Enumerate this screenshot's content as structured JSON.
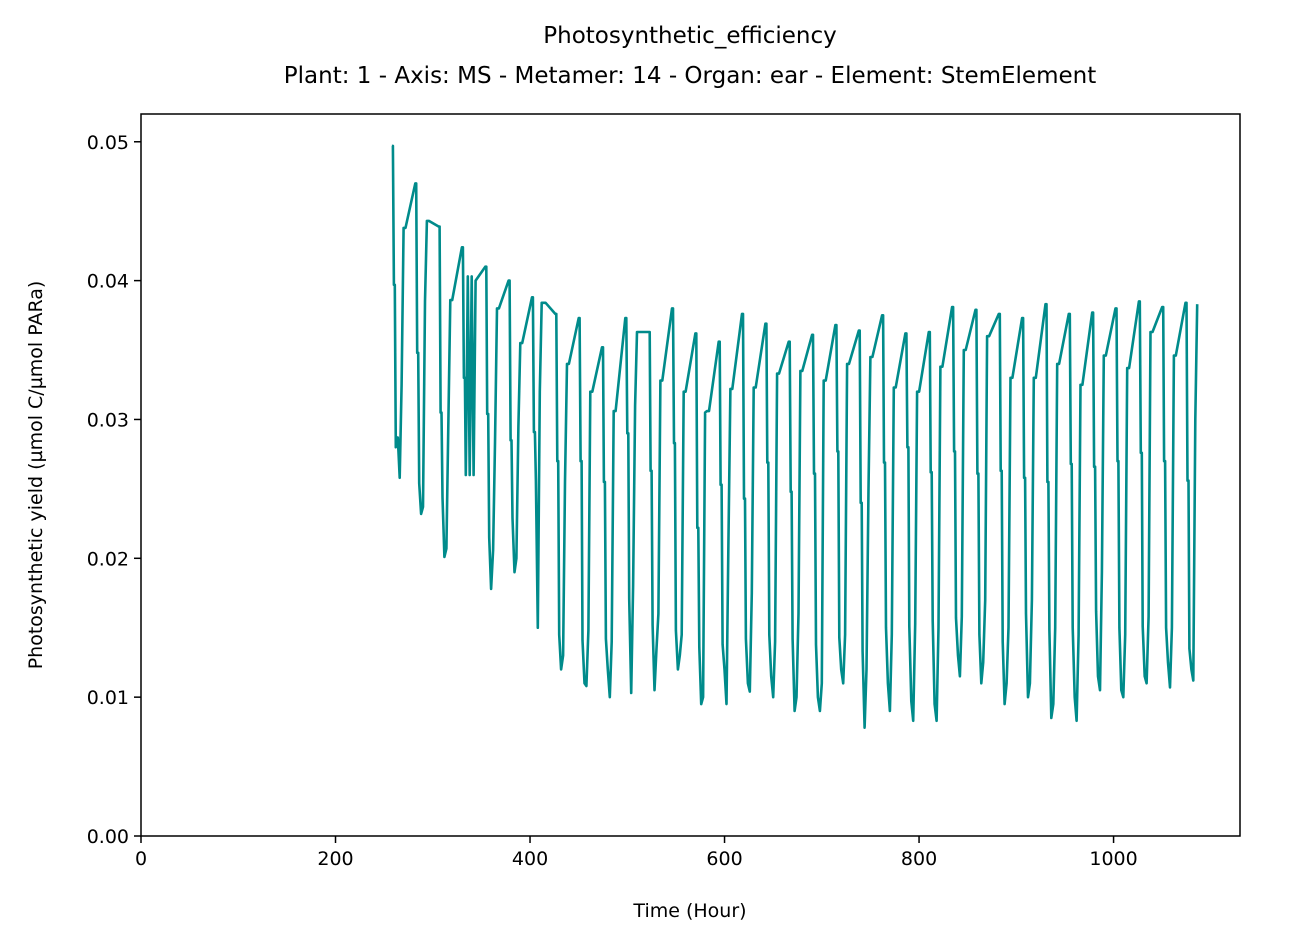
{
  "chart_data": {
    "type": "line",
    "title": "Photosynthetic_efficiency",
    "subtitle": "Plant: 1 - Axis: MS - Metamer: 14 - Organ: ear - Element: StemElement",
    "xlabel": "Time (Hour)",
    "ylabel": "Photosynthetic yield (µmol C/µmol PARa)",
    "xlim": [
      0,
      1130
    ],
    "ylim": [
      0,
      0.052
    ],
    "xticks": [
      0,
      200,
      400,
      600,
      800,
      1000
    ],
    "xtick_labels": [
      "0",
      "200",
      "400",
      "600",
      "800",
      "1000"
    ],
    "yticks": [
      0,
      0.01,
      0.02,
      0.03,
      0.04,
      0.05
    ],
    "ytick_labels": [
      "0.00",
      "0.01",
      "0.02",
      "0.03",
      "0.04",
      "0.05"
    ],
    "grid": false,
    "series": [
      {
        "color": "#008b8b",
        "x": [
          258,
          259,
          260,
          261,
          262,
          264,
          266,
          268,
          270,
          272,
          282,
          283,
          284,
          285,
          286,
          288,
          290,
          292,
          294,
          296,
          306,
          307,
          308,
          309,
          310,
          312,
          314,
          316,
          318,
          320,
          330,
          331,
          332,
          333,
          334,
          336,
          338,
          340,
          342,
          344,
          354,
          355,
          356,
          357,
          358,
          360,
          362,
          364,
          366,
          368,
          378,
          379,
          380,
          381,
          382,
          384,
          386,
          388,
          390,
          392,
          402,
          403,
          404,
          405,
          406,
          408,
          410,
          412,
          414,
          416,
          426,
          427,
          428,
          429,
          430,
          432,
          434,
          436,
          438,
          440,
          450,
          451,
          452,
          453,
          454,
          456,
          458,
          460,
          462,
          464,
          474,
          475,
          476,
          477,
          478,
          480,
          482,
          484,
          486,
          488,
          498,
          499,
          500,
          501,
          502,
          504,
          506,
          508,
          510,
          512,
          522,
          523,
          524,
          525,
          526,
          528,
          530,
          532,
          534,
          536,
          546,
          547,
          548,
          549,
          550,
          552,
          554,
          556,
          558,
          560,
          570,
          571,
          572,
          573,
          574,
          576,
          578,
          580,
          582,
          584,
          594,
          595,
          596,
          597,
          598,
          600,
          602,
          604,
          606,
          608,
          618,
          619,
          620,
          621,
          622,
          624,
          626,
          628,
          630,
          632,
          642,
          643,
          644,
          645,
          646,
          648,
          650,
          652,
          654,
          656,
          666,
          667,
          668,
          669,
          670,
          672,
          674,
          676,
          678,
          680,
          690,
          691,
          692,
          693,
          694,
          696,
          698,
          700,
          702,
          704,
          714,
          715,
          716,
          717,
          718,
          720,
          722,
          724,
          726,
          728,
          738,
          739,
          740,
          741,
          742,
          744,
          746,
          748,
          750,
          752,
          762,
          763,
          764,
          765,
          766,
          768,
          770,
          772,
          774,
          776,
          786,
          787,
          788,
          789,
          790,
          792,
          794,
          796,
          798,
          800,
          810,
          811,
          812,
          813,
          814,
          816,
          818,
          820,
          822,
          824,
          834,
          835,
          836,
          837,
          838,
          840,
          842,
          844,
          846,
          848,
          858,
          859,
          860,
          861,
          862,
          864,
          866,
          868,
          870,
          872,
          882,
          883,
          884,
          885,
          886,
          888,
          890,
          892,
          894,
          896,
          906,
          907,
          908,
          909,
          910,
          912,
          914,
          916,
          918,
          920,
          930,
          931,
          932,
          933,
          934,
          936,
          938,
          940,
          942,
          944,
          954,
          955,
          956,
          957,
          958,
          960,
          962,
          964,
          966,
          968,
          978,
          979,
          980,
          981,
          982,
          984,
          986,
          988,
          990,
          992,
          1002,
          1003,
          1004,
          1005,
          1006,
          1008,
          1010,
          1012,
          1014,
          1016,
          1026,
          1027,
          1028,
          1029,
          1030,
          1032,
          1034,
          1036,
          1038,
          1040,
          1050,
          1051,
          1052,
          1053,
          1054,
          1056,
          1058,
          1060,
          1062,
          1064,
          1074,
          1075,
          1076,
          1077,
          1078,
          1080,
          1082,
          1084,
          1086
        ],
        "y": [
          0.0497,
          0.0497,
          0.0397,
          0.0397,
          0.028,
          0.0287,
          0.0258,
          0.0325,
          0.0438,
          0.0438,
          0.047,
          0.047,
          0.0348,
          0.0348,
          0.0254,
          0.0232,
          0.0237,
          0.0385,
          0.0443,
          0.0443,
          0.0439,
          0.0439,
          0.0305,
          0.0305,
          0.0244,
          0.0201,
          0.0207,
          0.0295,
          0.0386,
          0.0386,
          0.0424,
          0.0424,
          0.033,
          0.033,
          0.026,
          0.0403,
          0.026,
          0.0403,
          0.026,
          0.04,
          0.041,
          0.041,
          0.0304,
          0.0304,
          0.0215,
          0.0178,
          0.0206,
          0.0283,
          0.038,
          0.038,
          0.04,
          0.04,
          0.0285,
          0.0285,
          0.0229,
          0.019,
          0.02,
          0.0295,
          0.0355,
          0.0355,
          0.0388,
          0.0388,
          0.0291,
          0.0291,
          0.0256,
          0.015,
          0.032,
          0.0384,
          0.0384,
          0.0384,
          0.0376,
          0.0376,
          0.027,
          0.027,
          0.0145,
          0.012,
          0.013,
          0.0255,
          0.034,
          0.034,
          0.0373,
          0.0373,
          0.027,
          0.027,
          0.0141,
          0.011,
          0.0108,
          0.0148,
          0.032,
          0.032,
          0.0352,
          0.0352,
          0.0255,
          0.0255,
          0.0142,
          0.012,
          0.01,
          0.014,
          0.0306,
          0.0306,
          0.0373,
          0.0373,
          0.029,
          0.029,
          0.0171,
          0.0103,
          0.018,
          0.031,
          0.0363,
          0.0363,
          0.0363,
          0.0363,
          0.0263,
          0.0263,
          0.0152,
          0.0105,
          0.0135,
          0.016,
          0.0328,
          0.0328,
          0.038,
          0.038,
          0.0283,
          0.0283,
          0.0148,
          0.012,
          0.013,
          0.0145,
          0.032,
          0.032,
          0.0362,
          0.0362,
          0.0222,
          0.0222,
          0.0136,
          0.0095,
          0.01,
          0.0305,
          0.0306,
          0.0306,
          0.0356,
          0.0356,
          0.0253,
          0.0253,
          0.0138,
          0.012,
          0.0095,
          0.021,
          0.0322,
          0.0322,
          0.0376,
          0.0376,
          0.0243,
          0.0243,
          0.0142,
          0.011,
          0.0104,
          0.0175,
          0.0323,
          0.0323,
          0.0369,
          0.0369,
          0.0269,
          0.0269,
          0.0145,
          0.0115,
          0.01,
          0.014,
          0.0333,
          0.0333,
          0.0356,
          0.0356,
          0.0248,
          0.0248,
          0.0142,
          0.009,
          0.01,
          0.016,
          0.0335,
          0.0335,
          0.0361,
          0.0361,
          0.0261,
          0.0261,
          0.0138,
          0.01,
          0.009,
          0.011,
          0.0328,
          0.0328,
          0.0368,
          0.0368,
          0.0277,
          0.0277,
          0.0143,
          0.012,
          0.011,
          0.0145,
          0.034,
          0.034,
          0.0364,
          0.0364,
          0.024,
          0.024,
          0.0133,
          0.0078,
          0.012,
          0.025,
          0.0345,
          0.0345,
          0.0375,
          0.0375,
          0.0269,
          0.0269,
          0.015,
          0.011,
          0.009,
          0.0145,
          0.0323,
          0.0323,
          0.0362,
          0.0362,
          0.028,
          0.028,
          0.0151,
          0.0097,
          0.0083,
          0.0153,
          0.032,
          0.032,
          0.0363,
          0.0363,
          0.0262,
          0.0262,
          0.0155,
          0.0095,
          0.0083,
          0.015,
          0.0338,
          0.0338,
          0.0381,
          0.0381,
          0.0277,
          0.0277,
          0.0157,
          0.013,
          0.0115,
          0.0158,
          0.035,
          0.035,
          0.0379,
          0.0379,
          0.0261,
          0.0261,
          0.0145,
          0.011,
          0.0125,
          0.017,
          0.036,
          0.036,
          0.0376,
          0.0376,
          0.0263,
          0.0263,
          0.014,
          0.0095,
          0.011,
          0.015,
          0.033,
          0.033,
          0.0373,
          0.0373,
          0.0258,
          0.0258,
          0.016,
          0.01,
          0.011,
          0.017,
          0.033,
          0.033,
          0.0383,
          0.0383,
          0.0255,
          0.0255,
          0.0148,
          0.0085,
          0.0095,
          0.015,
          0.034,
          0.034,
          0.0376,
          0.0376,
          0.0268,
          0.0268,
          0.015,
          0.01,
          0.0083,
          0.0145,
          0.0325,
          0.0325,
          0.0377,
          0.0377,
          0.0266,
          0.0266,
          0.0162,
          0.0115,
          0.0105,
          0.019,
          0.0346,
          0.0346,
          0.038,
          0.038,
          0.027,
          0.027,
          0.015,
          0.0105,
          0.01,
          0.0145,
          0.0337,
          0.0337,
          0.0385,
          0.0385,
          0.0276,
          0.0276,
          0.0151,
          0.0115,
          0.011,
          0.0158,
          0.0363,
          0.0363,
          0.0381,
          0.0381,
          0.027,
          0.027,
          0.015,
          0.0125,
          0.0107,
          0.015,
          0.0346,
          0.0346,
          0.0384,
          0.0384,
          0.0256,
          0.0256,
          0.0135,
          0.012,
          0.0112,
          0.03,
          0.0383
        ]
      }
    ]
  }
}
